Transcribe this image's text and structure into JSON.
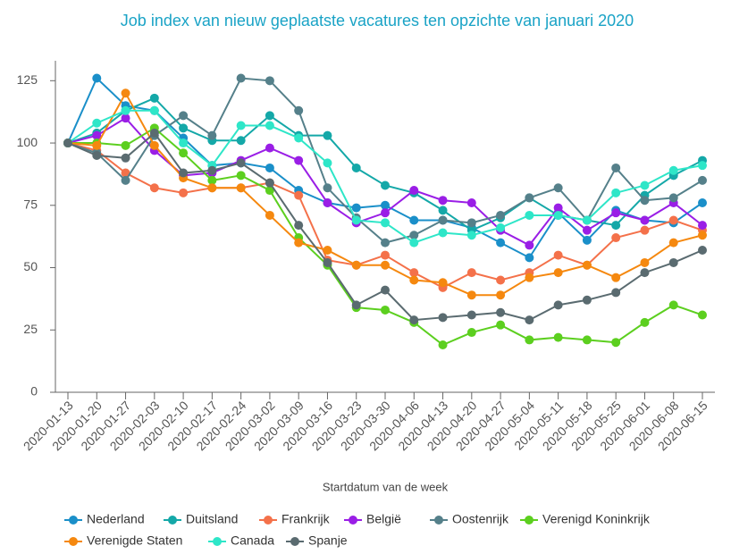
{
  "chart_data": {
    "type": "line",
    "title": "Job index van nieuw geplaatste vacatures ten opzichte van januari 2020",
    "x_label": "Startdatum van de week",
    "categories": [
      "2020-01-13",
      "2020-01-20",
      "2020-01-27",
      "2020-02-03",
      "2020-02-10",
      "2020-02-17",
      "2020-02-24",
      "2020-03-02",
      "2020-03-09",
      "2020-03-16",
      "2020-03-23",
      "2020-03-30",
      "2020-04-06",
      "2020-04-13",
      "2020-04-20",
      "2020-04-27",
      "2020-05-04",
      "2020-05-11",
      "2020-05-18",
      "2020-05-25",
      "2020-06-01",
      "2020-06-08",
      "2020-06-15"
    ],
    "ylim": [
      0,
      133
    ],
    "yticks": [
      0,
      25,
      50,
      75,
      100,
      125
    ],
    "grid": false,
    "series": [
      {
        "name": "Nederland",
        "color": "#1a8fc9",
        "values": [
          100,
          126,
          115,
          113,
          102,
          91,
          92,
          90,
          81,
          76,
          74,
          75,
          69,
          69,
          66,
          60,
          54,
          72,
          61,
          73,
          69,
          68,
          76
        ]
      },
      {
        "name": "Duitsland",
        "color": "#14a8a8",
        "values": [
          100,
          104,
          113,
          118,
          106,
          101,
          101,
          111,
          103,
          103,
          90,
          83,
          80,
          73,
          65,
          70,
          78,
          71,
          69,
          67,
          79,
          87,
          93
        ]
      },
      {
        "name": "Frankrijk",
        "color": "#f4714a",
        "values": [
          100,
          97,
          88,
          82,
          80,
          82,
          82,
          84,
          79,
          53,
          51,
          55,
          48,
          42,
          48,
          45,
          48,
          55,
          51,
          62,
          65,
          69,
          65
        ]
      },
      {
        "name": "België",
        "color": "#9a1ee6",
        "values": [
          100,
          103,
          110,
          97,
          87,
          88,
          93,
          98,
          93,
          76,
          68,
          72,
          81,
          77,
          76,
          65,
          59,
          74,
          65,
          72,
          69,
          76,
          67
        ]
      },
      {
        "name": "Oostenrijk",
        "color": "#55808a",
        "values": [
          100,
          96,
          85,
          103,
          111,
          103,
          126,
          125,
          113,
          82,
          70,
          60,
          63,
          69,
          68,
          71,
          78,
          82,
          69,
          90,
          77,
          78,
          85
        ]
      },
      {
        "name": "Verenigd Koninkrijk",
        "color": "#5ccf1f",
        "values": [
          100,
          100,
          99,
          106,
          96,
          85,
          87,
          81,
          62,
          51,
          34,
          33,
          28,
          19,
          24,
          27,
          21,
          22,
          21,
          20,
          28,
          35,
          31
        ]
      },
      {
        "name": "Verenigde Staten",
        "color": "#f5880f",
        "values": [
          100,
          99,
          120,
          99,
          86,
          82,
          82,
          71,
          60,
          57,
          51,
          51,
          45,
          44,
          39,
          39,
          46,
          48,
          51,
          46,
          52,
          60,
          63
        ]
      },
      {
        "name": "Canada",
        "color": "#2ee6c8",
        "values": [
          100,
          108,
          113,
          113,
          100,
          91,
          107,
          107,
          102,
          92,
          69,
          68,
          60,
          64,
          63,
          66,
          71,
          71,
          69,
          80,
          83,
          89,
          91
        ]
      },
      {
        "name": "Spanje",
        "color": "#5a6b70",
        "values": [
          100,
          95,
          94,
          104,
          88,
          89,
          92,
          84,
          67,
          52,
          35,
          41,
          29,
          30,
          31,
          32,
          29,
          35,
          37,
          40,
          48,
          52,
          57
        ]
      }
    ]
  }
}
